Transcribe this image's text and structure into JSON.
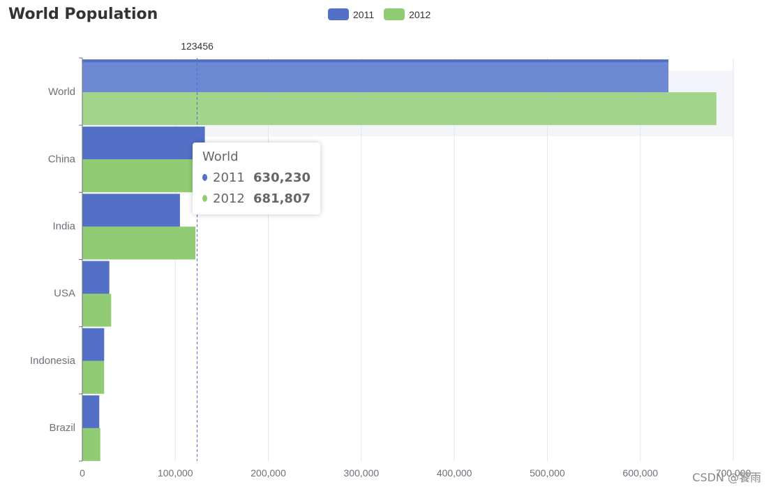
{
  "title": "World Population",
  "legend": [
    {
      "name": "2011",
      "color": "#5470c6"
    },
    {
      "name": "2012",
      "color": "#91cc75"
    }
  ],
  "axis_pointer_label": "123456",
  "tooltip": {
    "title": "World",
    "rows": [
      {
        "name": "2011",
        "value": "630,230",
        "color": "#5470c6"
      },
      {
        "name": "2012",
        "value": "681,807",
        "color": "#91cc75"
      }
    ]
  },
  "watermark": "CSDN @饕雨",
  "chart_data": {
    "type": "bar",
    "orientation": "horizontal",
    "title": "World Population",
    "categories": [
      "World",
      "China",
      "India",
      "USA",
      "Indonesia",
      "Brazil"
    ],
    "series": [
      {
        "name": "2011",
        "values": [
          630230,
          131744,
          104970,
          29034,
          23489,
          18203
        ],
        "color": "#5470c6"
      },
      {
        "name": "2012",
        "values": [
          681807,
          134141,
          121594,
          31000,
          23438,
          19325
        ],
        "color": "#91cc75"
      }
    ],
    "xlim": [
      0,
      700000
    ],
    "xticks": [
      "0",
      "100,000",
      "200,000",
      "300,000",
      "400,000",
      "500,000",
      "600,000",
      "700,000"
    ],
    "highlighted_category": "World",
    "pointer_value": 123456,
    "grid": true,
    "legend_position": "top"
  }
}
